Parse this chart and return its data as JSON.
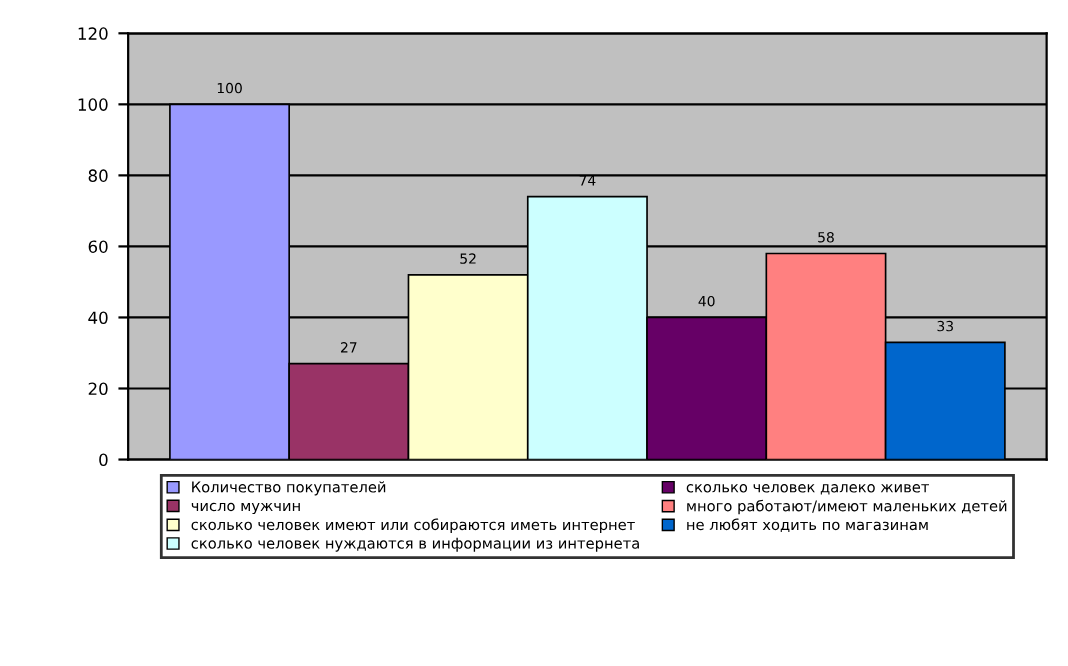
{
  "chart_data": {
    "type": "bar",
    "categories": [
      null
    ],
    "ylim": [
      0,
      120
    ],
    "yticks": [
      0,
      20,
      40,
      60,
      80,
      100,
      120
    ],
    "grid": "y",
    "legend": "bottom",
    "data_labels": true,
    "series": [
      {
        "name": "Количество покупателей",
        "color": "#9999ff",
        "values": [
          100
        ]
      },
      {
        "name": "число мужчин",
        "color": "#993366",
        "values": [
          27
        ]
      },
      {
        "name": "сколько человек имеют или собираются иметь интернет",
        "color": "#ffffcc",
        "values": [
          52
        ]
      },
      {
        "name": "сколько человек нуждаются в информации из интернета",
        "color": "#ccffff",
        "values": [
          74
        ]
      },
      {
        "name": "сколько человек далеко живет",
        "color": "#660066",
        "values": [
          40
        ]
      },
      {
        "name": "много работают/имеют маленьких детей",
        "color": "#ff8080",
        "values": [
          58
        ]
      },
      {
        "name": "не любят ходить по магазинам",
        "color": "#0066cc",
        "values": [
          33
        ]
      }
    ]
  }
}
